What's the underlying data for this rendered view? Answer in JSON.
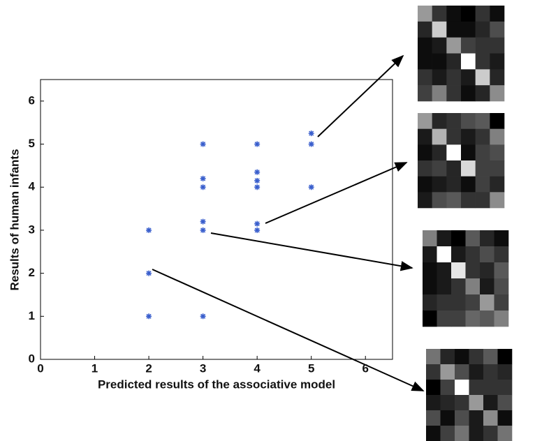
{
  "chart_data": [
    {
      "type": "scatter",
      "x_label": "Predicted results of the associative model",
      "y_label": "Results of human infants",
      "x": [
        2,
        2,
        2,
        3,
        3,
        3,
        3,
        3,
        3,
        4,
        4,
        4,
        4,
        4,
        4,
        5,
        5,
        5
      ],
      "y": [
        1,
        2,
        3,
        1,
        3,
        3.2,
        4,
        4.2,
        5,
        3,
        3.15,
        4,
        4.15,
        4.35,
        5,
        4,
        5,
        5.25
      ],
      "color": "#3a5fcd",
      "xlim": [
        0,
        6.5
      ],
      "xticks": [
        0,
        1,
        2,
        3,
        4,
        5,
        6
      ],
      "ylim": [
        0,
        6.5
      ],
      "yticks": [
        0,
        1,
        2,
        3,
        4,
        5,
        6
      ]
    },
    {
      "type": "heatmap",
      "values": [
        [
          0.6,
          0.2,
          0.05,
          0.0,
          0.2,
          0.05
        ],
        [
          0.15,
          0.8,
          0.05,
          0.05,
          0.15,
          0.3
        ],
        [
          0.05,
          0.1,
          0.6,
          0.25,
          0.2,
          0.2
        ],
        [
          0.05,
          0.05,
          0.15,
          1.0,
          0.2,
          0.1
        ],
        [
          0.2,
          0.1,
          0.2,
          0.1,
          0.8,
          0.15
        ],
        [
          0.25,
          0.5,
          0.2,
          0.05,
          0.15,
          0.55
        ]
      ]
    },
    {
      "type": "heatmap",
      "values": [
        [
          0.6,
          0.15,
          0.2,
          0.3,
          0.35,
          0.0
        ],
        [
          0.1,
          0.7,
          0.2,
          0.1,
          0.2,
          0.5
        ],
        [
          0.05,
          0.15,
          1.0,
          0.05,
          0.25,
          0.3
        ],
        [
          0.2,
          0.25,
          0.15,
          0.85,
          0.25,
          0.25
        ],
        [
          0.05,
          0.1,
          0.15,
          0.05,
          0.25,
          0.15
        ],
        [
          0.1,
          0.3,
          0.35,
          0.2,
          0.2,
          0.55
        ]
      ]
    },
    {
      "type": "heatmap",
      "values": [
        [
          0.5,
          0.1,
          0.0,
          0.35,
          0.15,
          0.05
        ],
        [
          0.1,
          1.0,
          0.1,
          0.2,
          0.3,
          0.2
        ],
        [
          0.05,
          0.1,
          0.9,
          0.2,
          0.15,
          0.35
        ],
        [
          0.05,
          0.1,
          0.2,
          0.5,
          0.1,
          0.3
        ],
        [
          0.15,
          0.2,
          0.2,
          0.25,
          0.6,
          0.25
        ],
        [
          0.0,
          0.25,
          0.25,
          0.4,
          0.35,
          0.5
        ]
      ]
    },
    {
      "type": "heatmap",
      "values": [
        [
          0.45,
          0.15,
          0.05,
          0.2,
          0.35,
          0.0
        ],
        [
          0.2,
          0.6,
          0.3,
          0.1,
          0.2,
          0.15
        ],
        [
          0.0,
          0.25,
          1.0,
          0.2,
          0.2,
          0.2
        ],
        [
          0.1,
          0.15,
          0.2,
          0.6,
          0.1,
          0.3
        ],
        [
          0.3,
          0.05,
          0.3,
          0.1,
          0.55,
          0.05
        ],
        [
          0.05,
          0.25,
          0.45,
          0.1,
          0.2,
          0.45
        ]
      ]
    }
  ]
}
